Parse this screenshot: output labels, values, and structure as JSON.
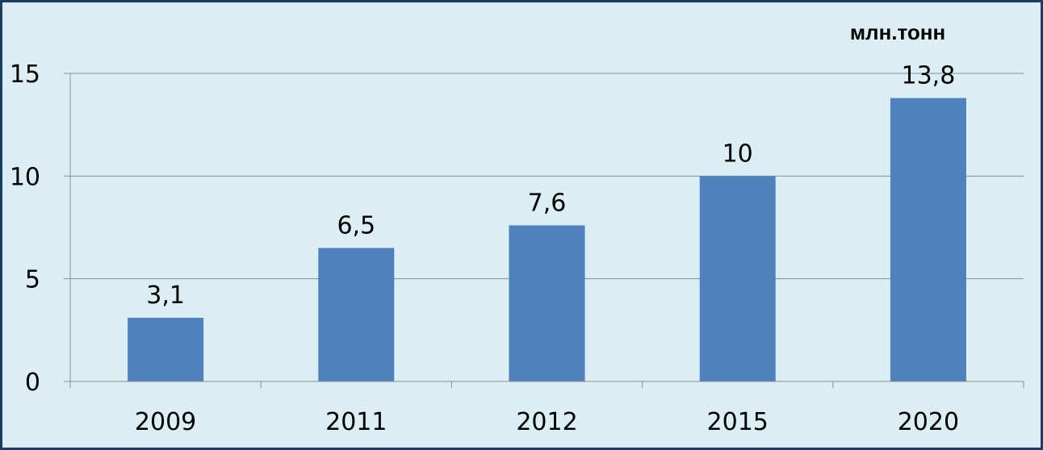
{
  "chart_data": {
    "type": "bar",
    "unit_label": "млн.тонн",
    "categories": [
      "2009",
      "2011",
      "2012",
      "2015",
      "2020"
    ],
    "values": [
      3.1,
      6.5,
      7.6,
      10,
      13.8
    ],
    "value_labels": [
      "3,1",
      "6,5",
      "7,6",
      "10",
      "13,8"
    ],
    "ylim": [
      0,
      15
    ],
    "yticks": [
      0,
      5,
      10,
      15
    ],
    "grid": true,
    "bar_color": "#4F81BD",
    "background_color": "#DBEEF4",
    "border_color": "#1F3B63"
  }
}
